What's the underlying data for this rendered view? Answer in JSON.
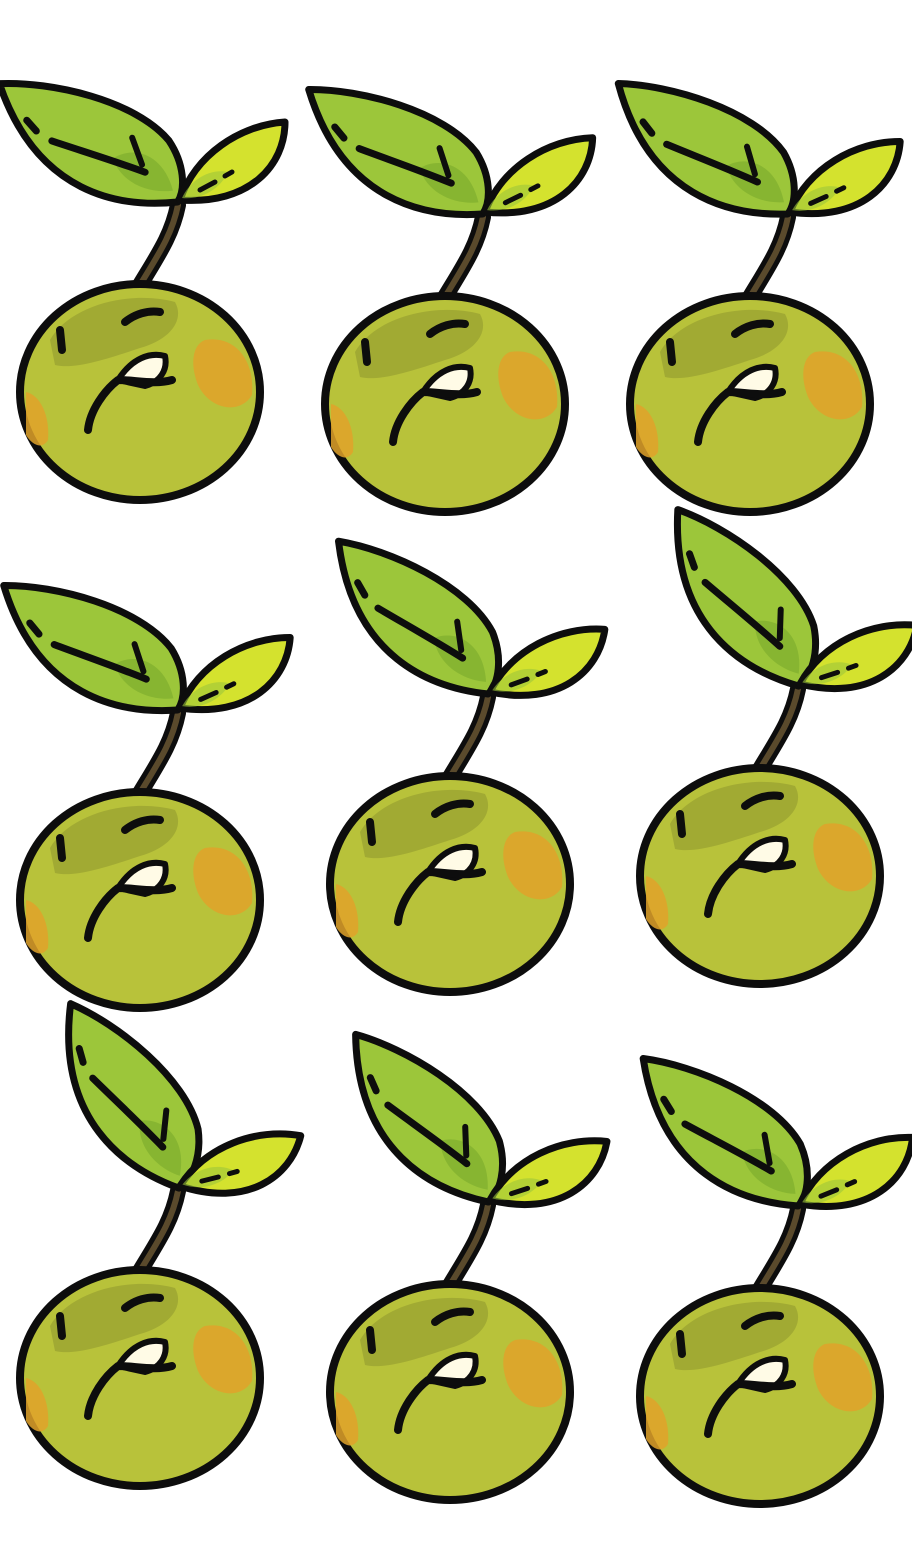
{
  "sprite_sheet": {
    "rows": 3,
    "columns": 3,
    "character": "sprout-seed",
    "expression": "grimace",
    "colors": {
      "outline": "#0d0d0d",
      "leaf_main": "#9cc63a",
      "leaf_shade": "#7fae2e",
      "leaf_small": "#d4e22e",
      "stem": "#5a4a2c",
      "body": "#b8c23a",
      "body_shade": "#9aa232",
      "blush": "#e0a22a",
      "tooth": "#fffbe6",
      "background": "#ffffff"
    },
    "frames": [
      {
        "name": "frame-1",
        "leaf_tilt": -8,
        "small_leaf_tilt": 0
      },
      {
        "name": "frame-2",
        "leaf_tilt": -6,
        "small_leaf_tilt": 2
      },
      {
        "name": "frame-3",
        "leaf_tilt": -4,
        "small_leaf_tilt": 4
      },
      {
        "name": "frame-4",
        "leaf_tilt": -6,
        "small_leaf_tilt": 4
      },
      {
        "name": "frame-5",
        "leaf_tilt": 4,
        "small_leaf_tilt": 8
      },
      {
        "name": "frame-6",
        "leaf_tilt": 14,
        "small_leaf_tilt": 10
      },
      {
        "name": "frame-7",
        "leaf_tilt": 18,
        "small_leaf_tilt": 14
      },
      {
        "name": "frame-8",
        "leaf_tilt": 10,
        "small_leaf_tilt": 10
      },
      {
        "name": "frame-9",
        "leaf_tilt": 2,
        "small_leaf_tilt": 6
      }
    ]
  }
}
